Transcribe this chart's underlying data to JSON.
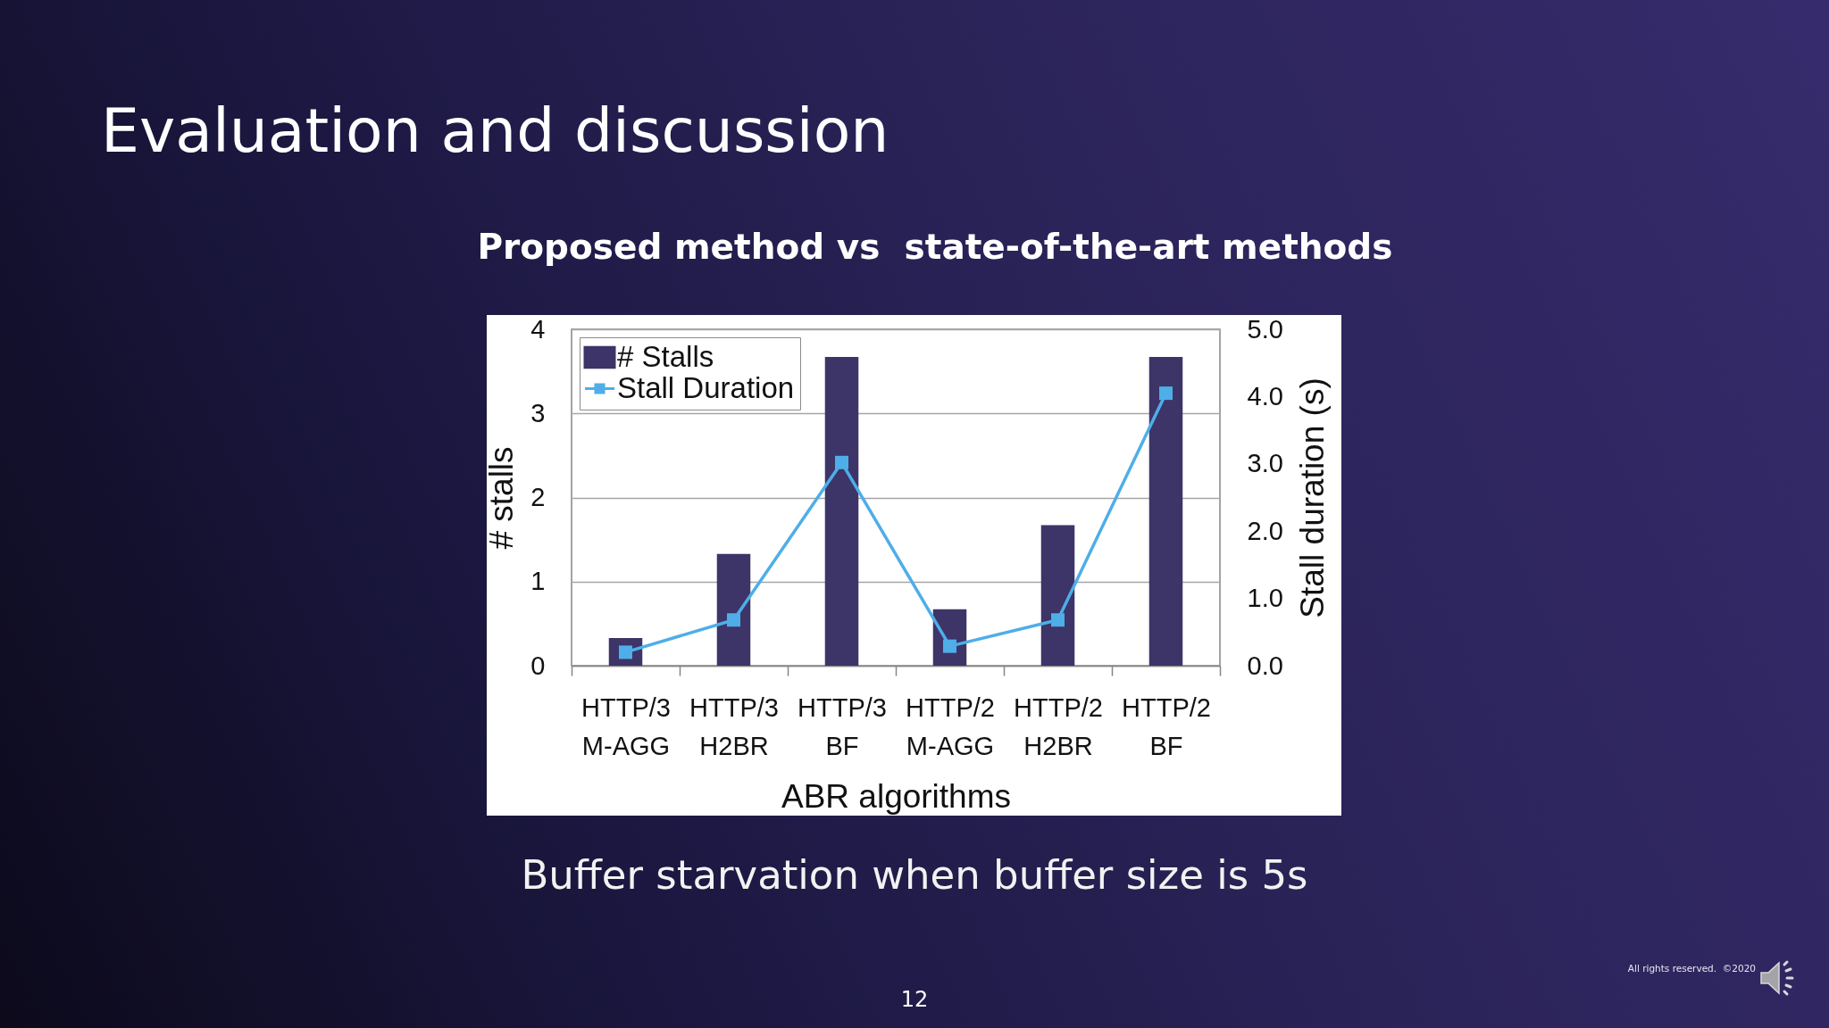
{
  "chart_data": {
    "type": "bar",
    "title": "Evaluation and discussion",
    "subtitle": "Proposed method vs  state-of-the-art methods",
    "xlabel": "ABR algorithms",
    "ylabel": "# stalls",
    "y2label": "Stall duration (s)",
    "categories": [
      "HTTP/3 M-AGG",
      "HTTP/3 H2BR",
      "HTTP/3 BF",
      "HTTP/2 M-AGG",
      "HTTP/2 H2BR",
      "HTTP/2 BF"
    ],
    "series": [
      {
        "name": "# Stalls",
        "color": "#3d3468",
        "values": [
          0.33,
          1.33,
          3.67,
          0.67,
          1.67,
          3.67
        ]
      },
      {
        "name": "Stall Duration",
        "type": "line",
        "axis": "y2",
        "color": "#4eaee8",
        "values": [
          0.2,
          0.68,
          3.02,
          0.29,
          0.68,
          4.05
        ]
      }
    ],
    "ylim": [
      0,
      4
    ],
    "yticks": [
      0,
      1,
      2,
      3,
      4
    ],
    "y2lim": [
      0,
      5
    ],
    "y2ticks": [
      {
        "value": 0,
        "label": "0.0"
      },
      {
        "value": 1,
        "label": "1.0"
      },
      {
        "value": 2,
        "label": "2.0"
      },
      {
        "value": 3,
        "label": "3.0"
      },
      {
        "value": 4,
        "label": "4.0"
      },
      {
        "value": 5,
        "label": "5.0"
      }
    ],
    "grid": "y",
    "legend": "top left",
    "marker": "square",
    "annotations": [
      "Buffer starvation when buffer size is 5s",
      "12",
      "All rights reserved.  ©2020"
    ]
  }
}
